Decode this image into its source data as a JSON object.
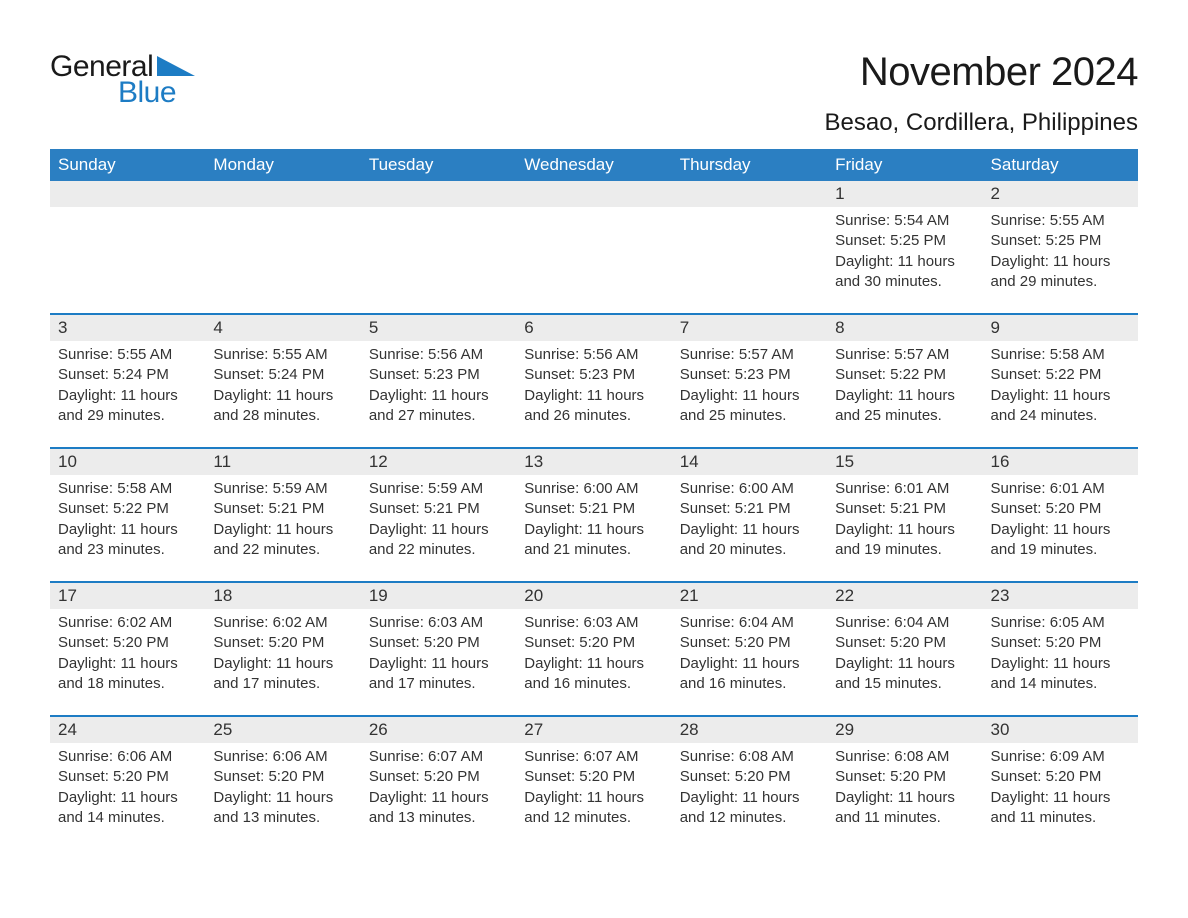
{
  "logo": {
    "text1": "General",
    "text2": "Blue"
  },
  "title": "November 2024",
  "location": "Besao, Cordillera, Philippines",
  "colors": {
    "header_bg": "#2b7fc2",
    "accent": "#1d7cc4",
    "daynum_bg": "#ececec",
    "text": "#333333",
    "page_bg": "#ffffff"
  },
  "weekdays": [
    "Sunday",
    "Monday",
    "Tuesday",
    "Wednesday",
    "Thursday",
    "Friday",
    "Saturday"
  ],
  "labels": {
    "sunrise": "Sunrise: ",
    "sunset": "Sunset: ",
    "daylight": "Daylight: "
  },
  "weeks": [
    [
      null,
      null,
      null,
      null,
      null,
      {
        "n": "1",
        "sunrise": "5:54 AM",
        "sunset": "5:25 PM",
        "daylight": "11 hours and 30 minutes."
      },
      {
        "n": "2",
        "sunrise": "5:55 AM",
        "sunset": "5:25 PM",
        "daylight": "11 hours and 29 minutes."
      }
    ],
    [
      {
        "n": "3",
        "sunrise": "5:55 AM",
        "sunset": "5:24 PM",
        "daylight": "11 hours and 29 minutes."
      },
      {
        "n": "4",
        "sunrise": "5:55 AM",
        "sunset": "5:24 PM",
        "daylight": "11 hours and 28 minutes."
      },
      {
        "n": "5",
        "sunrise": "5:56 AM",
        "sunset": "5:23 PM",
        "daylight": "11 hours and 27 minutes."
      },
      {
        "n": "6",
        "sunrise": "5:56 AM",
        "sunset": "5:23 PM",
        "daylight": "11 hours and 26 minutes."
      },
      {
        "n": "7",
        "sunrise": "5:57 AM",
        "sunset": "5:23 PM",
        "daylight": "11 hours and 25 minutes."
      },
      {
        "n": "8",
        "sunrise": "5:57 AM",
        "sunset": "5:22 PM",
        "daylight": "11 hours and 25 minutes."
      },
      {
        "n": "9",
        "sunrise": "5:58 AM",
        "sunset": "5:22 PM",
        "daylight": "11 hours and 24 minutes."
      }
    ],
    [
      {
        "n": "10",
        "sunrise": "5:58 AM",
        "sunset": "5:22 PM",
        "daylight": "11 hours and 23 minutes."
      },
      {
        "n": "11",
        "sunrise": "5:59 AM",
        "sunset": "5:21 PM",
        "daylight": "11 hours and 22 minutes."
      },
      {
        "n": "12",
        "sunrise": "5:59 AM",
        "sunset": "5:21 PM",
        "daylight": "11 hours and 22 minutes."
      },
      {
        "n": "13",
        "sunrise": "6:00 AM",
        "sunset": "5:21 PM",
        "daylight": "11 hours and 21 minutes."
      },
      {
        "n": "14",
        "sunrise": "6:00 AM",
        "sunset": "5:21 PM",
        "daylight": "11 hours and 20 minutes."
      },
      {
        "n": "15",
        "sunrise": "6:01 AM",
        "sunset": "5:21 PM",
        "daylight": "11 hours and 19 minutes."
      },
      {
        "n": "16",
        "sunrise": "6:01 AM",
        "sunset": "5:20 PM",
        "daylight": "11 hours and 19 minutes."
      }
    ],
    [
      {
        "n": "17",
        "sunrise": "6:02 AM",
        "sunset": "5:20 PM",
        "daylight": "11 hours and 18 minutes."
      },
      {
        "n": "18",
        "sunrise": "6:02 AM",
        "sunset": "5:20 PM",
        "daylight": "11 hours and 17 minutes."
      },
      {
        "n": "19",
        "sunrise": "6:03 AM",
        "sunset": "5:20 PM",
        "daylight": "11 hours and 17 minutes."
      },
      {
        "n": "20",
        "sunrise": "6:03 AM",
        "sunset": "5:20 PM",
        "daylight": "11 hours and 16 minutes."
      },
      {
        "n": "21",
        "sunrise": "6:04 AM",
        "sunset": "5:20 PM",
        "daylight": "11 hours and 16 minutes."
      },
      {
        "n": "22",
        "sunrise": "6:04 AM",
        "sunset": "5:20 PM",
        "daylight": "11 hours and 15 minutes."
      },
      {
        "n": "23",
        "sunrise": "6:05 AM",
        "sunset": "5:20 PM",
        "daylight": "11 hours and 14 minutes."
      }
    ],
    [
      {
        "n": "24",
        "sunrise": "6:06 AM",
        "sunset": "5:20 PM",
        "daylight": "11 hours and 14 minutes."
      },
      {
        "n": "25",
        "sunrise": "6:06 AM",
        "sunset": "5:20 PM",
        "daylight": "11 hours and 13 minutes."
      },
      {
        "n": "26",
        "sunrise": "6:07 AM",
        "sunset": "5:20 PM",
        "daylight": "11 hours and 13 minutes."
      },
      {
        "n": "27",
        "sunrise": "6:07 AM",
        "sunset": "5:20 PM",
        "daylight": "11 hours and 12 minutes."
      },
      {
        "n": "28",
        "sunrise": "6:08 AM",
        "sunset": "5:20 PM",
        "daylight": "11 hours and 12 minutes."
      },
      {
        "n": "29",
        "sunrise": "6:08 AM",
        "sunset": "5:20 PM",
        "daylight": "11 hours and 11 minutes."
      },
      {
        "n": "30",
        "sunrise": "6:09 AM",
        "sunset": "5:20 PM",
        "daylight": "11 hours and 11 minutes."
      }
    ]
  ]
}
